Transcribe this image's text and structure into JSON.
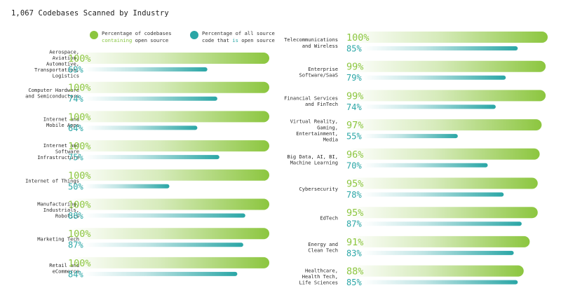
{
  "chart_data": {
    "type": "bar",
    "title": "1,067 Codebases Scanned by Industry",
    "legend": {
      "placement": "top",
      "items": [
        {
          "line1": "Percentage of codebases",
          "line2_highlight": "containing",
          "line2_rest": " open source",
          "color": "#8cc63f"
        },
        {
          "line1": "Percentage of all source",
          "line2_pre": "code that ",
          "line2_highlight": "is",
          "line2_rest": " open source",
          "color": "#2aa6a6"
        }
      ]
    },
    "colors": {
      "green": "#8cc63f",
      "teal": "#2aa6a6",
      "green_text": "#8cc63f",
      "teal_text": "#2aa6a6"
    },
    "ylim": [
      0,
      100
    ],
    "series": [
      {
        "name": "Percentage of codebases containing open source"
      },
      {
        "name": "Percentage of all source code that is open source"
      }
    ],
    "columns": [
      {
        "rows": [
          {
            "label": [
              "Aerospace,",
              "Aviation,",
              "Automotive,",
              "Transportation,",
              "Logistics"
            ],
            "containing": 100,
            "share": 69
          },
          {
            "label": [
              "Computer Hardware",
              "and Semiconductors"
            ],
            "containing": 100,
            "share": 74
          },
          {
            "label": [
              "Internet and",
              "Mobile Apps"
            ],
            "containing": 100,
            "share": 64
          },
          {
            "label": [
              "Internet and",
              "Software",
              "Infrastructure"
            ],
            "containing": 100,
            "share": 75
          },
          {
            "label": [
              "Internet of Things"
            ],
            "containing": 100,
            "share": 50
          },
          {
            "label": [
              "Manufacturing,",
              "Industrials,",
              "Robotics"
            ],
            "containing": 100,
            "share": 88
          },
          {
            "label": [
              "Marketing Tech"
            ],
            "containing": 100,
            "share": 87
          },
          {
            "label": [
              "Retail and",
              "eCommerce"
            ],
            "containing": 100,
            "share": 84
          }
        ]
      },
      {
        "rows": [
          {
            "label": [
              "Telecommunications",
              "and Wireless"
            ],
            "containing": 100,
            "share": 85
          },
          {
            "label": [
              "Enterprise",
              "Software/SaaS"
            ],
            "containing": 99,
            "share": 79
          },
          {
            "label": [
              "Financial Services",
              "and FinTech"
            ],
            "containing": 99,
            "share": 74
          },
          {
            "label": [
              "Virtual Reality,",
              "Gaming,",
              "Entertainment,",
              "Media"
            ],
            "containing": 97,
            "share": 55
          },
          {
            "label": [
              "Big Data, AI, BI,",
              "Machine Learning"
            ],
            "containing": 96,
            "share": 70
          },
          {
            "label": [
              "Cybersecurity"
            ],
            "containing": 95,
            "share": 78
          },
          {
            "label": [
              "EdTech"
            ],
            "containing": 95,
            "share": 87
          },
          {
            "label": [
              "Energy and",
              "Clean Tech"
            ],
            "containing": 91,
            "share": 83
          },
          {
            "label": [
              "Healthcare,",
              "Health Tech,",
              "Life Sciences"
            ],
            "containing": 88,
            "share": 85
          }
        ]
      }
    ]
  }
}
